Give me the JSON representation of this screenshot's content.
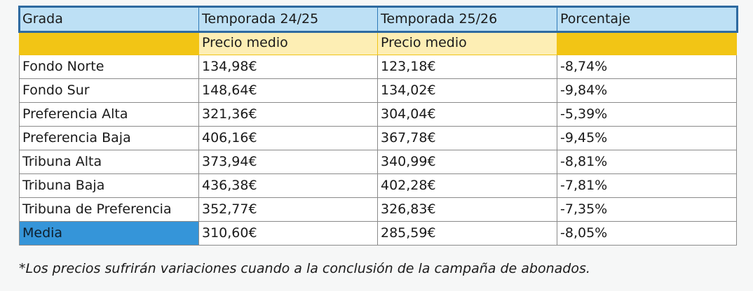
{
  "table": {
    "headers": [
      "Grada",
      "Temporada 24/25",
      "Temporada 25/26",
      "Porcentaje"
    ],
    "subheaders": [
      "",
      "Precio medio",
      "Precio medio",
      ""
    ],
    "rows": [
      {
        "grada": "Fondo Norte",
        "t2425": "134,98€",
        "t2526": "123,18€",
        "pct": "-8,74%"
      },
      {
        "grada": "Fondo Sur",
        "t2425": "148,64€",
        "t2526": "134,02€",
        "pct": "-9,84%"
      },
      {
        "grada": "Preferencia Alta",
        "t2425": "321,36€",
        "t2526": "304,04€",
        "pct": "-5,39%"
      },
      {
        "grada": "Preferencia Baja",
        "t2425": "406,16€",
        "t2526": "367,78€",
        "pct": "-9,45%"
      },
      {
        "grada": "Tribuna Alta",
        "t2425": "373,94€",
        "t2526": "340,99€",
        "pct": "-8,81%"
      },
      {
        "grada": "Tribuna Baja",
        "t2425": "436,38€",
        "t2526": "402,28€",
        "pct": "-7,81%"
      },
      {
        "grada": "Tribuna de Preferencia",
        "t2425": "352,77€",
        "t2526": "326,83€",
        "pct": "-7,35%"
      }
    ],
    "media": {
      "grada": "Media",
      "t2425": "310,60€",
      "t2526": "285,59€",
      "pct": "-8,05%"
    }
  },
  "colors": {
    "header_bg": "#bde0f5",
    "header_border": "#2e6aa0",
    "subheader_bg": "#fdeeb4",
    "subheader_gold": "#f2c515",
    "media_bg": "#3595d9"
  },
  "footnote": "*Los precios sufrirán variaciones cuando a la conclusión de la campaña de abonados."
}
